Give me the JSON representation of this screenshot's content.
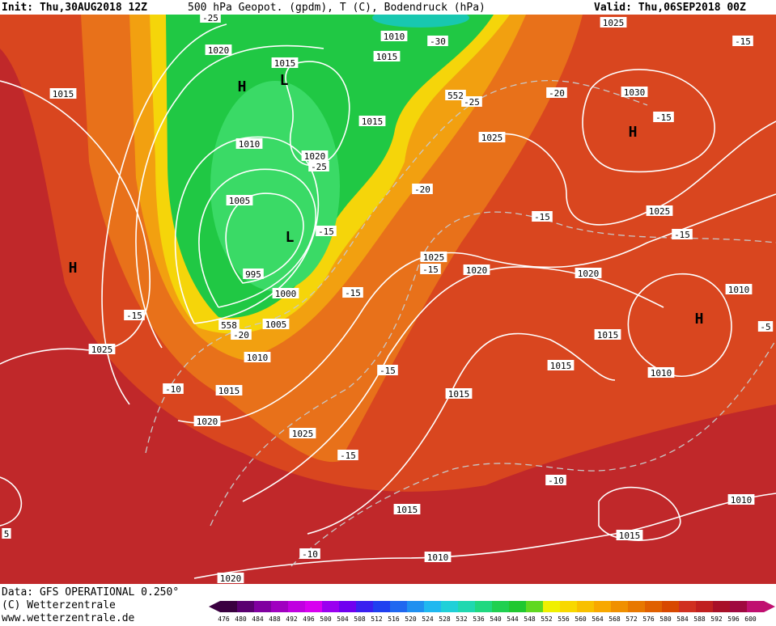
{
  "header": {
    "init": "Init: Thu,30AUG2018 12Z",
    "title": "500 hPa Geopot. (gpdm), T (C), Bodendruck (hPa)",
    "valid": "Valid: Thu,06SEP2018 00Z"
  },
  "footer": {
    "data": "Data: GFS OPERATIONAL 0.250°",
    "copyright": "(C) Wetterzentrale",
    "url": "www.wetterzentrale.de"
  },
  "colorbar": {
    "labels": [
      476,
      480,
      484,
      488,
      492,
      496,
      500,
      504,
      508,
      512,
      516,
      520,
      524,
      528,
      532,
      536,
      540,
      544,
      548,
      552,
      556,
      560,
      564,
      568,
      572,
      576,
      580,
      584,
      588,
      592,
      596,
      600
    ]
  },
  "map_labels": [
    "1025",
    "1010",
    "-30",
    "1015",
    "1020",
    "1015",
    "-25",
    "1015",
    "1030",
    "-15",
    "-20",
    "-25",
    "552",
    "1015",
    "1025",
    "1010",
    "1020",
    "-25",
    "-20",
    "1005",
    "-15",
    "1025",
    "-15",
    "-15",
    "1025",
    "-15",
    "1020",
    "1020",
    "995",
    "1000",
    "-15",
    "1010",
    "-15",
    "1005",
    "558",
    "-20",
    "1015",
    "1025",
    "1010",
    "1015",
    "1010",
    "-15",
    "-10",
    "1015",
    "1015",
    "1020",
    "1025",
    "-15",
    "-10",
    "1015",
    "1010",
    "1015",
    "-10",
    "1010",
    "1020",
    "-15",
    "-5",
    "5"
  ],
  "centers": [
    "H",
    "L",
    "H",
    "L",
    "H",
    "H"
  ]
}
